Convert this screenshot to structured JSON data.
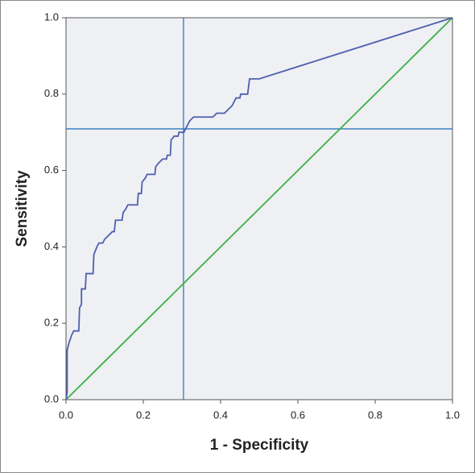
{
  "chart_data": {
    "type": "line",
    "xlabel": "1 - Specificity",
    "ylabel": "Sensitivity",
    "xlim": [
      0,
      1
    ],
    "ylim": [
      0,
      1
    ],
    "xticks": [
      {
        "value": 0,
        "label": "0.0"
      },
      0.2,
      0.4,
      0.6,
      0.8,
      {
        "value": 1,
        "label": "1.0"
      }
    ],
    "yticks": [
      {
        "value": 0,
        "label": "0.0"
      },
      0.2,
      0.4,
      0.6,
      0.8,
      {
        "value": 1,
        "label": "1.0"
      }
    ],
    "series": [
      {
        "color": "#4f5fae",
        "x": [
          0,
          0.003,
          0.003,
          0.008,
          0.015,
          0.02,
          0.033,
          0.035,
          0.04,
          0.04,
          0.05,
          0.052,
          0.07,
          0.072,
          0.08,
          0.085,
          0.095,
          0.1,
          0.11,
          0.12,
          0.125,
          0.128,
          0.145,
          0.148,
          0.155,
          0.16,
          0.185,
          0.187,
          0.195,
          0.197,
          0.205,
          0.21,
          0.23,
          0.232,
          0.24,
          0.25,
          0.26,
          0.262,
          0.27,
          0.272,
          0.28,
          0.29,
          0.292,
          0.305,
          0.31,
          0.32,
          0.33,
          0.38,
          0.39,
          0.41,
          0.42,
          0.43,
          0.44,
          0.45,
          0.452,
          0.47,
          0.475,
          0.5,
          1
        ],
        "values": [
          0,
          0.02,
          0.13,
          0.15,
          0.17,
          0.18,
          0.18,
          0.24,
          0.25,
          0.29,
          0.29,
          0.33,
          0.33,
          0.38,
          0.4,
          0.41,
          0.41,
          0.42,
          0.43,
          0.44,
          0.44,
          0.47,
          0.47,
          0.49,
          0.5,
          0.51,
          0.51,
          0.54,
          0.54,
          0.57,
          0.58,
          0.59,
          0.59,
          0.61,
          0.62,
          0.63,
          0.63,
          0.64,
          0.64,
          0.68,
          0.69,
          0.69,
          0.7,
          0.7,
          0.71,
          0.73,
          0.74,
          0.74,
          0.75,
          0.75,
          0.76,
          0.77,
          0.79,
          0.79,
          0.8,
          0.8,
          0.84,
          0.84,
          1
        ]
      },
      {
        "color": "#3cb043",
        "x": [
          0,
          1
        ],
        "values": [
          0,
          1
        ]
      }
    ],
    "reference_lines": {
      "color": "#2f78bd",
      "x": 0.304,
      "y": 0.709
    }
  }
}
